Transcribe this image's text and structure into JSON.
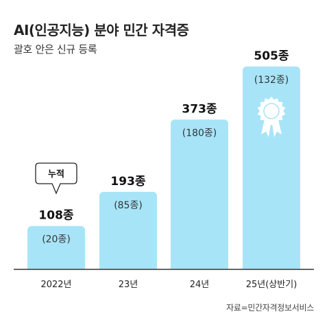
{
  "title": "AI(인공지능) 분야 민간 자격증",
  "subtitle": "괄호 안은 신규 등록",
  "source": "자료=민간자격정보서비스",
  "callout": "누적",
  "colors": {
    "bar": "#a8e4f8",
    "axis": "#333333",
    "medal": "#ffffff"
  },
  "icon": "medal-ribbon-icon",
  "chart_data": {
    "type": "bar",
    "categories": [
      "2022년",
      "23년",
      "24년",
      "25년(상반기)"
    ],
    "values": [
      108,
      193,
      373,
      505
    ],
    "value_labels": [
      "108종",
      "193종",
      "373종",
      "505종"
    ],
    "new_labels": [
      "(20종)",
      "(85종)",
      "(180종)",
      "(132종)"
    ],
    "new_registrations": [
      20,
      85,
      180,
      132
    ],
    "ylim": [
      0,
      505
    ]
  }
}
